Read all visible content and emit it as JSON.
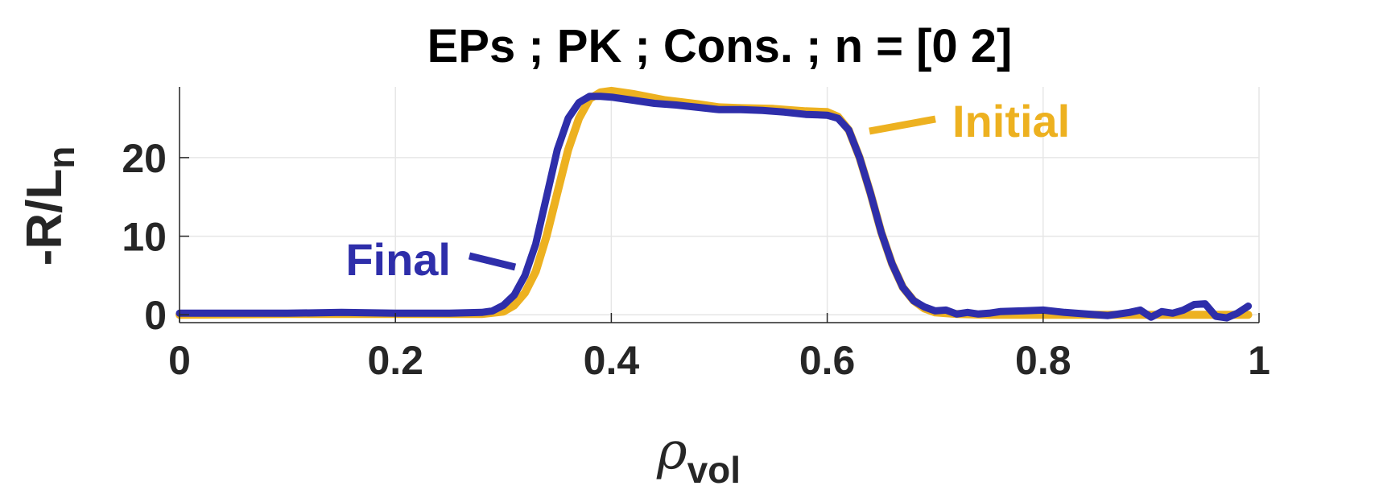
{
  "chart_data": {
    "type": "line",
    "title": "EPs ; PK ; Cons. ; n = [0 2]",
    "ylabel": "-R/L",
    "ylabel_subscript": "n",
    "xlabel": "ρ",
    "xlabel_subscript": "vol",
    "xlim": [
      0,
      1
    ],
    "ylim": [
      -1,
      29
    ],
    "xticks": [
      0,
      0.2,
      0.4,
      0.6,
      0.8,
      1
    ],
    "xtick_labels": [
      "0",
      "0.2",
      "0.4",
      "0.6",
      "0.8",
      "1"
    ],
    "yticks": [
      0,
      10,
      20
    ],
    "ytick_labels": [
      "0",
      "10",
      "20"
    ],
    "grid": true,
    "colors": {
      "initial": "#EDB120",
      "final": "#2E2EAA",
      "grid": "#e6e6e6",
      "axis": "#262626"
    },
    "series": [
      {
        "name": "Initial",
        "color": "#EDB120",
        "x": [
          0,
          0.1,
          0.2,
          0.28,
          0.3,
          0.31,
          0.32,
          0.33,
          0.34,
          0.35,
          0.36,
          0.37,
          0.38,
          0.39,
          0.4,
          0.42,
          0.45,
          0.48,
          0.5,
          0.52,
          0.55,
          0.58,
          0.6,
          0.61,
          0.62,
          0.63,
          0.64,
          0.65,
          0.66,
          0.67,
          0.68,
          0.69,
          0.7,
          0.72,
          0.75,
          0.8,
          0.85,
          0.9,
          0.95,
          0.99
        ],
        "y": [
          0,
          0.1,
          0.1,
          0.1,
          0.4,
          1.2,
          2.8,
          5.5,
          10,
          15.5,
          21,
          25,
          27.5,
          28.3,
          28.5,
          28.1,
          27.3,
          26.8,
          26.4,
          26.3,
          26.2,
          25.9,
          25.8,
          25.2,
          23.5,
          20,
          15.5,
          10.5,
          6.5,
          3.5,
          1.8,
          0.8,
          0.3,
          0.1,
          0,
          0,
          0,
          0,
          0,
          0
        ]
      },
      {
        "name": "Final",
        "color": "#2E2EAA",
        "x": [
          0,
          0.05,
          0.1,
          0.15,
          0.2,
          0.25,
          0.28,
          0.29,
          0.3,
          0.31,
          0.32,
          0.33,
          0.34,
          0.35,
          0.36,
          0.37,
          0.38,
          0.39,
          0.4,
          0.42,
          0.44,
          0.46,
          0.48,
          0.5,
          0.52,
          0.54,
          0.56,
          0.58,
          0.6,
          0.61,
          0.62,
          0.63,
          0.64,
          0.65,
          0.66,
          0.67,
          0.68,
          0.69,
          0.7,
          0.71,
          0.72,
          0.73,
          0.74,
          0.75,
          0.76,
          0.78,
          0.8,
          0.82,
          0.84,
          0.86,
          0.88,
          0.89,
          0.9,
          0.91,
          0.92,
          0.93,
          0.94,
          0.95,
          0.96,
          0.97,
          0.98,
          0.99
        ],
        "y": [
          0.2,
          0.2,
          0.2,
          0.3,
          0.2,
          0.2,
          0.3,
          0.5,
          1.2,
          2.5,
          5,
          9,
          15,
          21,
          25,
          27,
          27.8,
          27.8,
          27.7,
          27.3,
          26.9,
          26.7,
          26.4,
          26.1,
          26.1,
          26,
          25.8,
          25.5,
          25.4,
          25,
          23.5,
          20,
          15.5,
          10.5,
          6.5,
          3.5,
          1.8,
          1,
          0.5,
          0.6,
          0.1,
          0.3,
          0.1,
          0.2,
          0.4,
          0.5,
          0.6,
          0.3,
          0.1,
          -0.1,
          0.3,
          0.6,
          -0.3,
          0.4,
          0.2,
          0.6,
          1.3,
          1.4,
          -0.2,
          -0.4,
          0.2,
          1.1
        ]
      }
    ],
    "annotations": [
      {
        "text": "Initial",
        "series": "Initial"
      },
      {
        "text": "Final",
        "series": "Final"
      }
    ]
  }
}
